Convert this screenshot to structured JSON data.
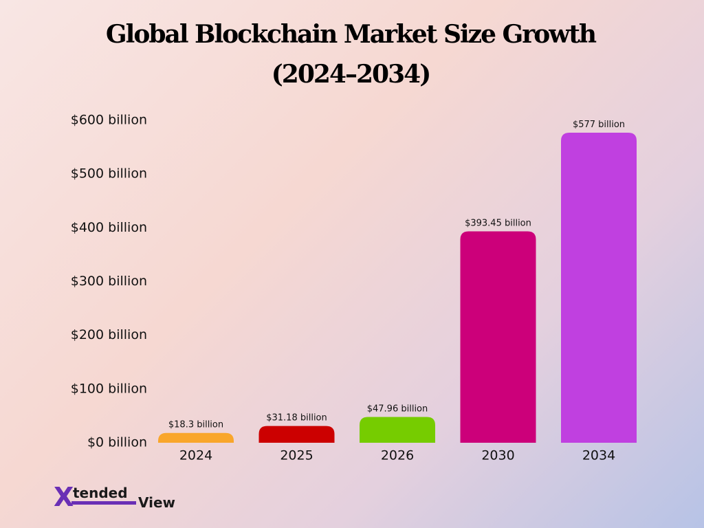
{
  "chart_data": {
    "type": "bar",
    "title": "Global Blockchain Market Size Growth",
    "subtitle": "(2024–2034)",
    "categories": [
      "2024",
      "2025",
      "2026",
      "2030",
      "2034"
    ],
    "values": [
      18.3,
      31.18,
      47.96,
      393.45,
      577
    ],
    "value_labels": [
      "$18.3 billion",
      "$31.18 billion",
      "$47.96 billion",
      "$393.45 billion",
      "$577 billion"
    ],
    "colors": [
      "#f9a62b",
      "#cc0000",
      "#76cc00",
      "#cc007a",
      "#c040e0"
    ],
    "ylim": [
      0,
      600
    ],
    "yticks": [
      {
        "value": 0,
        "label": "$0 billion"
      },
      {
        "value": 100,
        "label": "$100 billion"
      },
      {
        "value": 200,
        "label": "$200 billion"
      },
      {
        "value": 300,
        "label": "$300 billion"
      },
      {
        "value": 400,
        "label": "$400 billion"
      },
      {
        "value": 500,
        "label": "$500 billion"
      },
      {
        "value": 600,
        "label": "$600 billion"
      }
    ],
    "grid": false
  },
  "logo": [
    "X",
    "tended",
    "View"
  ]
}
